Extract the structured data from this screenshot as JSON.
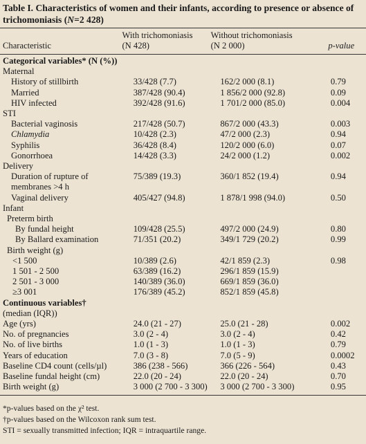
{
  "title": [
    "Table I. Characteristics of women and their infants, according to presence or absence of trichomoniasis (",
    "N",
    "=2 428)"
  ],
  "table": {
    "header": [
      [
        "Characteristic"
      ],
      [
        "With trichomoniasis",
        "(N 428)"
      ],
      [
        "Without trichomoniasis",
        "(N 2 000)"
      ],
      [
        "p-value"
      ]
    ],
    "rows": [
      [
        "Categorical variables* (N (%))"
      ],
      [
        "Maternal"
      ],
      [
        "History of stillbirth",
        "33/428 (7.7)",
        "162/2 000 (8.1)",
        "0.79"
      ],
      [
        "Married",
        "387/428 (90.4)",
        "1 856/2 000 (92.8)",
        "0.09"
      ],
      [
        "HIV infected",
        "392/428 (91.6)",
        "1 701/2 000 (85.0)",
        "0.004"
      ],
      [
        "STI"
      ],
      [
        "Bacterial vaginosis",
        "217/428 (50.7)",
        "867/2 000 (43.3)",
        "0.003"
      ],
      [
        "Chlamydia",
        "10/428 (2.3)",
        "47/2 000 (2.3)",
        "0.94"
      ],
      [
        "Syphilis",
        "36/428 (8.4)",
        "120/2 000 (6.0)",
        "0.07"
      ],
      [
        "Gonorrhoea",
        "14/428 (3.3)",
        "24/2 000 (1.2)",
        "0.002"
      ],
      [
        "Delivery"
      ],
      [
        [
          "Duration of rupture of",
          "membranes >4 h"
        ],
        "75/389 (19.3)",
        "360/1 852 (19.4)",
        "0.94"
      ],
      [
        "Vaginal delivery",
        "405/427 (94.8)",
        "1 878/1 998 (94.0)",
        "0.50"
      ],
      [
        "Infant"
      ],
      [
        "Preterm birth"
      ],
      [
        "By fundal height",
        "109/428 (25.5)",
        "497/2 000 (24.9)",
        "0.80"
      ],
      [
        "By Ballard examination",
        "71/351 (20.2)",
        "349/1 729 (20.2)",
        "0.99"
      ],
      [
        "Birth weight (g)"
      ],
      [
        "<1 500",
        "10/389 (2.6)",
        "42/1 859 (2.3)",
        "0.98"
      ],
      [
        "1 501 - 2 500",
        "63/389 (16.2)",
        "296/1 859 (15.9)"
      ],
      [
        "2 501 - 3 000",
        "140/389 (36.0)",
        "669/1 859 (36.0)"
      ],
      [
        "≥3 001",
        "176/389 (45.2)",
        "852/1 859 (45.8)"
      ],
      [
        "Continuous variables†"
      ],
      [
        "(median  (IQR))"
      ],
      [
        "Age (yrs)",
        "24.0 (21 - 27)",
        "25.0 (21 - 28)",
        "0.002"
      ],
      [
        "No. of pregnancies",
        "3.0 (2 - 4)",
        "3.0 (2 - 4)",
        "0.42"
      ],
      [
        "No. of live births",
        "1.0 (1 - 3)",
        "1.0 (1 - 3)",
        "0.79"
      ],
      [
        "Years of education",
        "7.0 (3 - 8)",
        "7.0 (5 - 9)",
        "0.0002"
      ],
      [
        "Baseline CD4 count (cells/µl)",
        "386 (238 - 566)",
        "366 (226 - 564)",
        "0.43"
      ],
      [
        "Baseline fundal height (cm)",
        "22.0 (20 - 24)",
        "22.0 (20 - 24)",
        "0.70"
      ],
      [
        "Birth weight (g)",
        "3 000 (2 700 - 3 300)",
        "3 000 (2 700 - 3 300)",
        "0.95"
      ]
    ]
  },
  "footnotes": [
    "*p-values based on the χ² test.",
    "†p-values based on the Wilcoxon rank sum test.",
    "STI = sexually transmitted infection; IQR = intraquartile range."
  ]
}
